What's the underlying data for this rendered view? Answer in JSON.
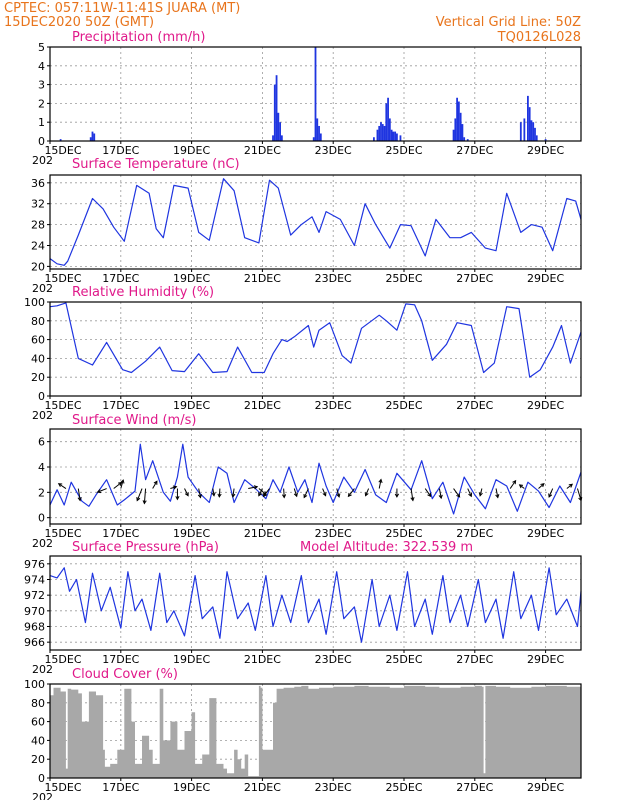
{
  "header": {
    "line1": "CPTEC:  057:11W-11:41S  JUARA (MT)",
    "line2": "15DEC2020 50Z (GMT)",
    "right1": "Vertical Grid Line: 50Z",
    "right2": "TQ0126L028"
  },
  "colors": {
    "series": "#1f35e0",
    "bars": "#1f35e0",
    "cloud": "#a8a8a8",
    "title": "#e0198a",
    "header": "#e8741c"
  },
  "x_axis": {
    "ticks": [
      "15DEC",
      "17DEC",
      "19DEC",
      "21DEC",
      "23DEC",
      "25DEC",
      "27DEC",
      "29DEC"
    ],
    "year_label": "202",
    "xlim": [
      0,
      15
    ]
  },
  "chart_data": [
    {
      "id": "precip",
      "type": "bar",
      "title": "Precipitation (mm/h)",
      "ylim": [
        0,
        5
      ],
      "yticks": [
        0,
        1,
        2,
        3,
        4,
        5
      ],
      "x": [
        0.3,
        1.15,
        1.2,
        1.25,
        6.3,
        6.35,
        6.4,
        6.45,
        6.5,
        6.55,
        7.45,
        7.5,
        7.55,
        7.6,
        7.65,
        9.15,
        9.25,
        9.3,
        9.35,
        9.4,
        9.45,
        9.5,
        9.55,
        9.6,
        9.65,
        9.7,
        9.75,
        9.8,
        9.9,
        11.4,
        11.45,
        11.5,
        11.55,
        11.6,
        11.65,
        11.7,
        11.8,
        13.3,
        13.4,
        13.5,
        13.55,
        13.6,
        13.65,
        13.7,
        13.75,
        14.0
      ],
      "values": [
        0.1,
        0.2,
        0.5,
        0.4,
        0.3,
        3.0,
        3.5,
        1.5,
        1.0,
        0.3,
        0.2,
        5.0,
        1.2,
        0.8,
        0.4,
        0.2,
        0.6,
        0.8,
        1.0,
        0.9,
        0.8,
        2.0,
        2.3,
        1.2,
        0.6,
        0.5,
        0.5,
        0.4,
        0.3,
        0.6,
        1.2,
        2.3,
        2.1,
        1.5,
        0.9,
        0.2,
        0.1,
        1.0,
        1.2,
        2.4,
        1.8,
        1.1,
        1.0,
        0.7,
        0.3,
        0.1
      ]
    },
    {
      "id": "temp",
      "type": "line",
      "title": "Surface Temperature (nC)",
      "ylim": [
        19.5,
        37.5
      ],
      "yticks": [
        20,
        24,
        28,
        32,
        36
      ],
      "x": [
        0,
        0.2,
        0.4,
        0.5,
        0.8,
        1.2,
        1.5,
        1.8,
        2.1,
        2.45,
        2.8,
        3.0,
        3.2,
        3.5,
        3.9,
        4.2,
        4.5,
        4.9,
        5.2,
        5.5,
        5.9,
        6.2,
        6.45,
        6.8,
        7.1,
        7.4,
        7.6,
        7.8,
        8.2,
        8.6,
        8.9,
        9.2,
        9.6,
        9.9,
        10.2,
        10.6,
        10.9,
        11.3,
        11.6,
        11.9,
        12.3,
        12.6,
        12.9,
        13.3,
        13.6,
        13.9,
        14.2,
        14.6,
        14.85,
        15
      ],
      "values": [
        21.5,
        20.5,
        20.2,
        21.0,
        26.0,
        33.0,
        31.0,
        27.5,
        24.8,
        35.5,
        34.0,
        27.2,
        25.5,
        35.5,
        35.0,
        26.5,
        25.0,
        36.8,
        34.5,
        25.5,
        24.5,
        36.5,
        35.0,
        26.0,
        28.0,
        29.5,
        26.5,
        30.5,
        29.0,
        24.0,
        32.0,
        28.0,
        23.5,
        28.0,
        27.8,
        22.0,
        29.0,
        25.5,
        25.5,
        26.5,
        23.5,
        23.0,
        34.0,
        26.5,
        28.0,
        27.5,
        23.0,
        33.0,
        32.5,
        29.0
      ]
    },
    {
      "id": "rh",
      "type": "line",
      "title": "Relative Humidity (%)",
      "ylim": [
        0,
        100
      ],
      "yticks": [
        0,
        20,
        40,
        60,
        80,
        100
      ],
      "x": [
        0,
        0.2,
        0.45,
        0.8,
        1.2,
        1.6,
        2.05,
        2.3,
        2.7,
        3.1,
        3.45,
        3.8,
        4.2,
        4.6,
        5.0,
        5.3,
        5.7,
        6.05,
        6.3,
        6.55,
        6.7,
        6.9,
        7.3,
        7.45,
        7.6,
        7.9,
        8.25,
        8.5,
        8.8,
        9.3,
        9.5,
        9.8,
        10.05,
        10.3,
        10.5,
        10.8,
        11.2,
        11.5,
        11.9,
        12.25,
        12.55,
        12.9,
        13.25,
        13.55,
        13.85,
        14.2,
        14.45,
        14.7,
        15
      ],
      "values": [
        95,
        96,
        99,
        40,
        33,
        57,
        28,
        25,
        37,
        52,
        27,
        26,
        45,
        25,
        26,
        52,
        25,
        25,
        45,
        60,
        58,
        63,
        75,
        52,
        70,
        78,
        43,
        35,
        72,
        86,
        80,
        70,
        98,
        97,
        80,
        38,
        55,
        78,
        75,
        25,
        35,
        95,
        93,
        20,
        28,
        52,
        75,
        35,
        68
      ]
    },
    {
      "id": "wind",
      "type": "line",
      "title": "Surface Wind (m/s)",
      "ylim": [
        -0.5,
        7
      ],
      "yticks": [
        0,
        2,
        4,
        6
      ],
      "x": [
        0,
        0.2,
        0.4,
        0.6,
        0.9,
        1.1,
        1.3,
        1.6,
        1.9,
        2.1,
        2.4,
        2.55,
        2.7,
        2.9,
        3.2,
        3.4,
        3.6,
        3.75,
        3.9,
        4.2,
        4.5,
        4.75,
        5.0,
        5.2,
        5.5,
        5.8,
        6.1,
        6.3,
        6.5,
        6.75,
        7.0,
        7.2,
        7.4,
        7.6,
        7.8,
        8.0,
        8.3,
        8.6,
        8.9,
        9.2,
        9.5,
        9.8,
        10.2,
        10.5,
        10.8,
        11.1,
        11.4,
        11.7,
        12.0,
        12.3,
        12.6,
        12.9,
        13.2,
        13.5,
        13.8,
        14.1,
        14.4,
        14.7,
        15
      ],
      "values": [
        1.0,
        2.2,
        1.0,
        2.8,
        1.3,
        0.9,
        1.8,
        3.0,
        1.0,
        1.4,
        2.1,
        5.8,
        3.0,
        4.5,
        2.0,
        1.3,
        3.2,
        5.8,
        3.2,
        2.0,
        1.2,
        4.0,
        3.5,
        1.2,
        3.0,
        2.3,
        1.5,
        3.0,
        2.0,
        4.0,
        2.0,
        3.0,
        1.2,
        4.3,
        2.5,
        1.2,
        3.2,
        2.0,
        3.8,
        1.8,
        1.2,
        3.5,
        2.2,
        4.5,
        1.5,
        2.8,
        0.3,
        3.2,
        1.8,
        0.7,
        3.0,
        2.5,
        0.5,
        2.8,
        2.1,
        0.8,
        2.5,
        1.2,
        3.6
      ]
    },
    {
      "id": "pressure",
      "type": "line",
      "title": "Surface Pressure (hPa)",
      "annotation": "Model Altitude: 322.539 m",
      "ylim": [
        965,
        977
      ],
      "yticks": [
        966,
        968,
        970,
        972,
        974,
        976
      ],
      "x": [
        0,
        0.2,
        0.4,
        0.55,
        0.75,
        1.0,
        1.2,
        1.45,
        1.7,
        2.0,
        2.2,
        2.4,
        2.6,
        2.85,
        3.1,
        3.3,
        3.5,
        3.8,
        4.1,
        4.3,
        4.6,
        4.8,
        5.0,
        5.3,
        5.6,
        5.8,
        6.1,
        6.3,
        6.55,
        6.8,
        7.1,
        7.3,
        7.6,
        7.8,
        8.1,
        8.3,
        8.6,
        8.8,
        9.1,
        9.3,
        9.6,
        9.8,
        10.1,
        10.3,
        10.6,
        10.8,
        11.1,
        11.3,
        11.6,
        11.8,
        12.1,
        12.3,
        12.6,
        12.8,
        13.1,
        13.3,
        13.6,
        13.8,
        14.1,
        14.3,
        14.6,
        14.9,
        15
      ],
      "values": [
        974.5,
        974.2,
        975.5,
        972.5,
        974.0,
        968.5,
        974.8,
        970.0,
        973.0,
        967.8,
        975.0,
        970.0,
        971.5,
        967.5,
        974.8,
        968.5,
        970.0,
        966.8,
        974.5,
        969.0,
        970.5,
        966.5,
        975.0,
        969.0,
        971.0,
        967.5,
        974.5,
        968.0,
        972.0,
        968.5,
        974.5,
        968.5,
        971.5,
        967.0,
        975.0,
        969.0,
        970.5,
        966.0,
        974.0,
        968.0,
        972.0,
        967.5,
        975.0,
        968.0,
        971.5,
        967.0,
        974.5,
        968.5,
        972.0,
        968.0,
        974.0,
        968.5,
        971.5,
        966.5,
        975.0,
        969.0,
        972.0,
        967.5,
        975.5,
        969.5,
        971.5,
        968.0,
        972.5
      ]
    },
    {
      "id": "cloud",
      "type": "area",
      "title": "Cloud Cover (%)",
      "ylim": [
        0,
        100
      ],
      "yticks": [
        0,
        20,
        40,
        60,
        80,
        100
      ],
      "x": [
        0,
        0.1,
        0.3,
        0.45,
        0.5,
        0.6,
        0.8,
        0.9,
        1.1,
        1.3,
        1.5,
        1.55,
        1.7,
        1.9,
        2.1,
        2.3,
        2.4,
        2.6,
        2.8,
        2.9,
        3.1,
        3.2,
        3.4,
        3.6,
        3.8,
        4.0,
        4.1,
        4.3,
        4.5,
        4.7,
        4.9,
        5.0,
        5.2,
        5.3,
        5.4,
        5.5,
        5.6,
        5.7,
        5.8,
        5.9,
        5.95,
        6.0,
        6.3,
        6.4,
        6.6,
        6.9,
        7.1,
        7.3,
        7.6,
        8.0,
        8.6,
        9.0,
        9.6,
        10.0,
        10.6,
        11.0,
        11.6,
        12.0,
        12.2,
        12.25,
        12.3,
        12.6,
        13.0,
        13.6,
        14.0,
        14.6,
        15
      ],
      "values": [
        88,
        96,
        92,
        10,
        95,
        94,
        90,
        60,
        92,
        88,
        30,
        12,
        15,
        30,
        95,
        60,
        15,
        45,
        30,
        15,
        95,
        40,
        60,
        30,
        50,
        70,
        15,
        25,
        85,
        15,
        10,
        5,
        30,
        20,
        10,
        25,
        2,
        2,
        2,
        98,
        96,
        30,
        80,
        95,
        96,
        97,
        98,
        95,
        96,
        97,
        98,
        97,
        96,
        98,
        97,
        96,
        97,
        98,
        97,
        5,
        98,
        97,
        96,
        97,
        98,
        97,
        96
      ]
    },
    {
      "id": "wind_vectors",
      "type": "vector",
      "x": [
        0.45,
        0.8,
        1.6,
        1.8,
        2.0,
        2.6,
        2.7,
        2.9,
        3.4,
        3.6,
        3.8,
        4.2,
        4.6,
        4.8,
        5.2,
        5.6,
        5.9,
        6.0,
        6.2,
        6.6,
        6.9,
        7.3,
        7.7,
        8.1,
        8.6,
        9.0,
        9.3,
        9.8,
        10.2,
        10.6,
        11.0,
        11.4,
        11.8,
        12.2,
        12.6,
        13.0,
        13.4,
        13.8,
        14.2,
        14.6,
        14.9
      ],
      "u": [
        -1.2,
        0.3,
        -1.5,
        1.3,
        0.4,
        -0.8,
        -0.2,
        0.7,
        1.0,
        0.0,
        0.6,
        0.3,
        0.2,
        -0.1,
        -0.2,
        1.5,
        1.2,
        -0.6,
        -1.0,
        0.1,
        0.4,
        -0.7,
        0.5,
        0.4,
        -1.0,
        -0.5,
        0.3,
        0.0,
        0.3,
        0.9,
        0.3,
        1.0,
        0.6,
        -0.3,
        0.3,
        0.9,
        -0.8,
        0.9,
        -0.6,
        0.9,
        0.6
      ],
      "v": [
        0.8,
        -2.0,
        -0.6,
        1.0,
        1.4,
        -2.0,
        -2.5,
        1.2,
        0.3,
        -1.8,
        -1.2,
        -1.5,
        -1.2,
        -1.4,
        -1.4,
        0.3,
        -1.0,
        -1.2,
        -1.3,
        -1.5,
        -1.3,
        -1.5,
        -1.2,
        -1.4,
        -1.3,
        -1.2,
        1.5,
        -1.4,
        -2.0,
        -1.3,
        -1.6,
        -1.4,
        -1.3,
        -1.2,
        -1.5,
        1.3,
        0.6,
        0.8,
        -1.4,
        0.7,
        -2.0
      ]
    }
  ]
}
